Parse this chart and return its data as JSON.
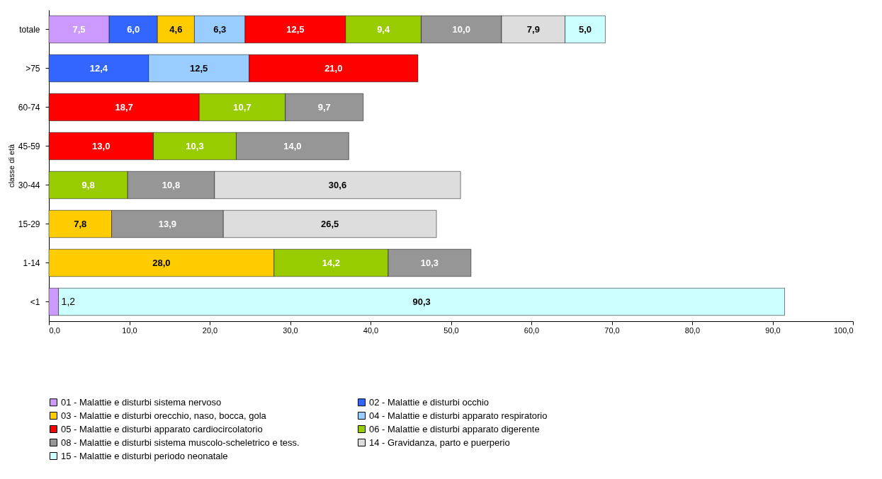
{
  "chart_data": {
    "type": "bar",
    "orientation": "horizontal",
    "stacked": true,
    "ylabel": "classe di età",
    "categories": [
      "totale",
      ">75",
      "60-74",
      "45-59",
      "30-44",
      "15-29",
      "1-14",
      "<1"
    ],
    "series": [
      {
        "name": "01 - Malattie e disturbi sistema nervoso",
        "color": "#cc99ff",
        "values": [
          7.5,
          null,
          null,
          null,
          null,
          null,
          null,
          1.2
        ],
        "value_labels": [
          "7,5",
          null,
          null,
          null,
          null,
          null,
          null,
          "1,2"
        ]
      },
      {
        "name": "02 - Malattie e disturbi occhio",
        "color": "#3366ff",
        "values": [
          6.0,
          12.4,
          null,
          null,
          null,
          null,
          null,
          null
        ],
        "value_labels": [
          "6,0",
          "12,4",
          null,
          null,
          null,
          null,
          null,
          null
        ]
      },
      {
        "name": "03 - Malattie e disturbi orecchio, naso, bocca, gola",
        "color": "#ffcc00",
        "values": [
          4.6,
          null,
          null,
          null,
          null,
          7.8,
          28.0,
          null
        ],
        "value_labels": [
          "4,6",
          null,
          null,
          null,
          null,
          "7,8",
          "28,0",
          null
        ]
      },
      {
        "name": "04 - Malattie e disturbi apparato respiratorio",
        "color": "#99ccff",
        "values": [
          6.3,
          12.5,
          null,
          null,
          null,
          null,
          null,
          null
        ],
        "value_labels": [
          "6,3",
          "12,5",
          null,
          null,
          null,
          null,
          null,
          null
        ]
      },
      {
        "name": "05 - Malattie e disturbi apparato cardiocircolatorio",
        "color": "#ff0000",
        "values": [
          12.5,
          21.0,
          18.7,
          13.0,
          null,
          null,
          null,
          null
        ],
        "value_labels": [
          "12,5",
          "21,0",
          "18,7",
          "13,0",
          null,
          null,
          null,
          null
        ]
      },
      {
        "name": "06 - Malattie e disturbi apparato digerente",
        "color": "#99cc00",
        "values": [
          9.4,
          null,
          10.7,
          10.3,
          9.8,
          null,
          14.2,
          null
        ],
        "value_labels": [
          "9,4",
          null,
          "10,7",
          "10,3",
          "9,8",
          null,
          "14,2",
          null
        ]
      },
      {
        "name": "08 - Malattie e disturbi sistema muscolo-scheletrico e tess.",
        "color": "#969696",
        "values": [
          10.0,
          null,
          9.7,
          14.0,
          10.8,
          13.9,
          10.3,
          null
        ],
        "value_labels": [
          "10,0",
          null,
          "9,7",
          "14,0",
          "10,8",
          "13,9",
          "10,3",
          null
        ]
      },
      {
        "name": "14 - Gravidanza, parto e puerperio",
        "color": "#dddddd",
        "values": [
          7.9,
          null,
          null,
          null,
          30.6,
          26.5,
          null,
          null
        ],
        "value_labels": [
          "7,9",
          null,
          null,
          null,
          "30,6",
          "26,5",
          null,
          null
        ]
      },
      {
        "name": "15 - Malattie e disturbi periodo neonatale",
        "color": "#ccffff",
        "values": [
          5.0,
          null,
          null,
          null,
          null,
          null,
          null,
          90.3
        ],
        "value_labels": [
          "5,0",
          null,
          null,
          null,
          null,
          null,
          null,
          "90,3"
        ]
      }
    ],
    "legend": "bottom",
    "grid": false,
    "xlim": [
      0,
      100
    ],
    "xticks": [
      {
        "value": 0,
        "label": "0,0"
      },
      {
        "value": 10,
        "label": "10,0"
      },
      {
        "value": 20,
        "label": "20,0"
      },
      {
        "value": 30,
        "label": "30,0"
      },
      {
        "value": 40,
        "label": "40,0"
      },
      {
        "value": 50,
        "label": "50,0"
      },
      {
        "value": 60,
        "label": "60,0"
      },
      {
        "value": 70,
        "label": "70,0"
      },
      {
        "value": 80,
        "label": "80,0"
      },
      {
        "value": 90,
        "label": "90,0"
      },
      {
        "value": 100,
        "label": "100,0"
      }
    ]
  }
}
